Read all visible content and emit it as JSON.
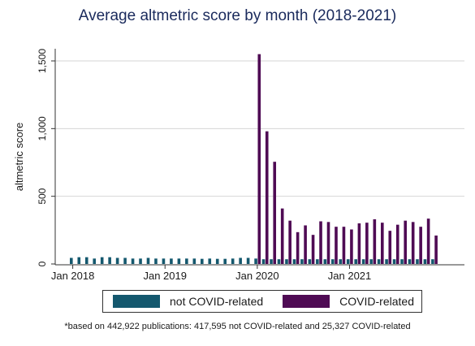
{
  "chart_data": {
    "type": "bar",
    "title": "Average altmetric score by month (2018-2021)",
    "ylabel": "altmetric score",
    "xlabel": "",
    "ylim": [
      0,
      1600
    ],
    "yticks": [
      0,
      500,
      1000,
      1500
    ],
    "ytick_labels": [
      "0",
      "500",
      "1,000",
      "1,500"
    ],
    "xtick_labels": [
      {
        "month_index": 0,
        "label": "Jan 2018"
      },
      {
        "month_index": 12,
        "label": "Jan 2019"
      },
      {
        "month_index": 24,
        "label": "Jan 2020"
      },
      {
        "month_index": 36,
        "label": "Jan 2021"
      }
    ],
    "grid": true,
    "months": [
      "2018-01",
      "2018-02",
      "2018-03",
      "2018-04",
      "2018-05",
      "2018-06",
      "2018-07",
      "2018-08",
      "2018-09",
      "2018-10",
      "2018-11",
      "2018-12",
      "2019-01",
      "2019-02",
      "2019-03",
      "2019-04",
      "2019-05",
      "2019-06",
      "2019-07",
      "2019-08",
      "2019-09",
      "2019-10",
      "2019-11",
      "2019-12",
      "2020-01",
      "2020-02",
      "2020-03",
      "2020-04",
      "2020-05",
      "2020-06",
      "2020-07",
      "2020-08",
      "2020-09",
      "2020-10",
      "2020-11",
      "2020-12",
      "2021-01",
      "2021-02",
      "2021-03",
      "2021-04",
      "2021-05",
      "2021-06",
      "2021-07",
      "2021-08",
      "2021-09",
      "2021-10",
      "2021-11",
      "2021-12"
    ],
    "series": [
      {
        "name": "not COVID-related",
        "color": "#14586e",
        "values": [
          45,
          50,
          50,
          40,
          50,
          50,
          45,
          45,
          40,
          40,
          45,
          40,
          40,
          40,
          40,
          40,
          40,
          38,
          40,
          38,
          38,
          40,
          45,
          45,
          40,
          35,
          35,
          35,
          35,
          35,
          35,
          35,
          35,
          35,
          35,
          35,
          35,
          35,
          35,
          35,
          35,
          35,
          35,
          35,
          35,
          35,
          35,
          35
        ]
      },
      {
        "name": "COVID-related",
        "color": "#4f0b54",
        "values": [
          0,
          0,
          0,
          0,
          0,
          0,
          0,
          0,
          0,
          0,
          0,
          0,
          0,
          0,
          0,
          0,
          0,
          0,
          0,
          0,
          0,
          0,
          0,
          0,
          1550,
          980,
          755,
          410,
          320,
          235,
          285,
          215,
          315,
          310,
          275,
          275,
          255,
          300,
          305,
          330,
          305,
          245,
          290,
          320,
          310,
          275,
          335,
          210
        ]
      }
    ],
    "legend_position": "bottom",
    "footnote": "*based on 442,922 publications: 417,595 not COVID-related and 25,327 COVID-related"
  }
}
